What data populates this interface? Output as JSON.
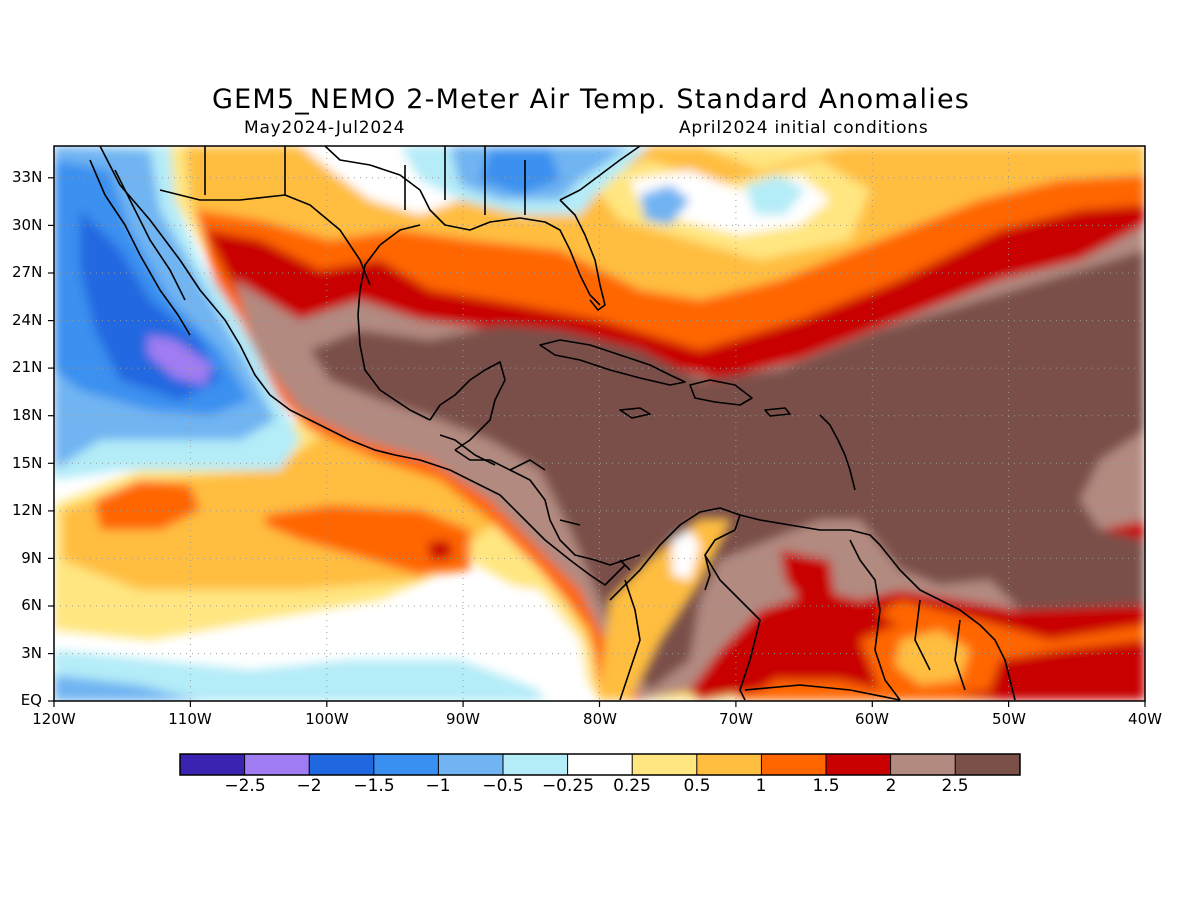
{
  "title": "GEM5_NEMO 2-Meter Air Temp. Standard Anomalies",
  "period": "May2024-Jul2024",
  "initial_conditions": "April2024 initial conditions",
  "lat_ticks": [
    "33N",
    "30N",
    "27N",
    "24N",
    "21N",
    "18N",
    "15N",
    "12N",
    "9N",
    "6N",
    "3N",
    "EQ"
  ],
  "lon_ticks": [
    "120W",
    "110W",
    "100W",
    "90W",
    "80W",
    "70W",
    "60W",
    "50W",
    "40W"
  ],
  "colorbar": {
    "labels": [
      "-2.5",
      "-2",
      "-1.5",
      "-1",
      "-0.5",
      "-0.25",
      "0.25",
      "0.5",
      "1",
      "1.5",
      "2",
      "2.5"
    ],
    "colors": [
      "#3a23b0",
      "#a07cf2",
      "#2068e0",
      "#3a90f0",
      "#70b4f2",
      "#b4ecf8",
      "#ffffff",
      "#ffe680",
      "#ffbe40",
      "#ff6600",
      "#c80000",
      "#b28a80",
      "#7a5048"
    ]
  },
  "map_extent": {
    "lon": [
      -120,
      -40
    ],
    "lat": [
      0,
      35
    ]
  },
  "grid": "dotted"
}
